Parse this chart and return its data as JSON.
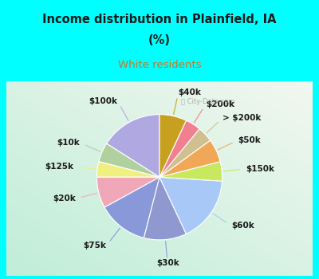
{
  "title_line1": "Income distribution in Plainfield, IA",
  "title_line2": "(%)",
  "subtitle": "White residents",
  "title_color": "#1a1a1a",
  "subtitle_color": "#c87820",
  "bg_top": "#00ffff",
  "watermark": "ⓘ City-Data.com",
  "labels": [
    "$100k",
    "$10k",
    "$125k",
    "$20k",
    "$75k",
    "$30k",
    "$60k",
    "$150k",
    "$50k",
    "> $200k",
    "$200k",
    "$40k"
  ],
  "values": [
    16,
    5,
    4,
    8,
    13,
    11,
    17,
    5,
    6,
    4,
    4,
    7
  ],
  "colors": [
    "#b0a8e0",
    "#b0d0a0",
    "#f0f080",
    "#f0a8b8",
    "#8898d8",
    "#9098d0",
    "#a8c8f8",
    "#c8e860",
    "#f0a858",
    "#d0c090",
    "#f08090",
    "#c8a020"
  ],
  "startangle": 90,
  "label_fontsize": 7.5,
  "label_color": "#1a1a1a",
  "line_color_alpha": 0.6,
  "chart_grad_left": "#c8eee0",
  "chart_grad_right": "#e8f8f0"
}
